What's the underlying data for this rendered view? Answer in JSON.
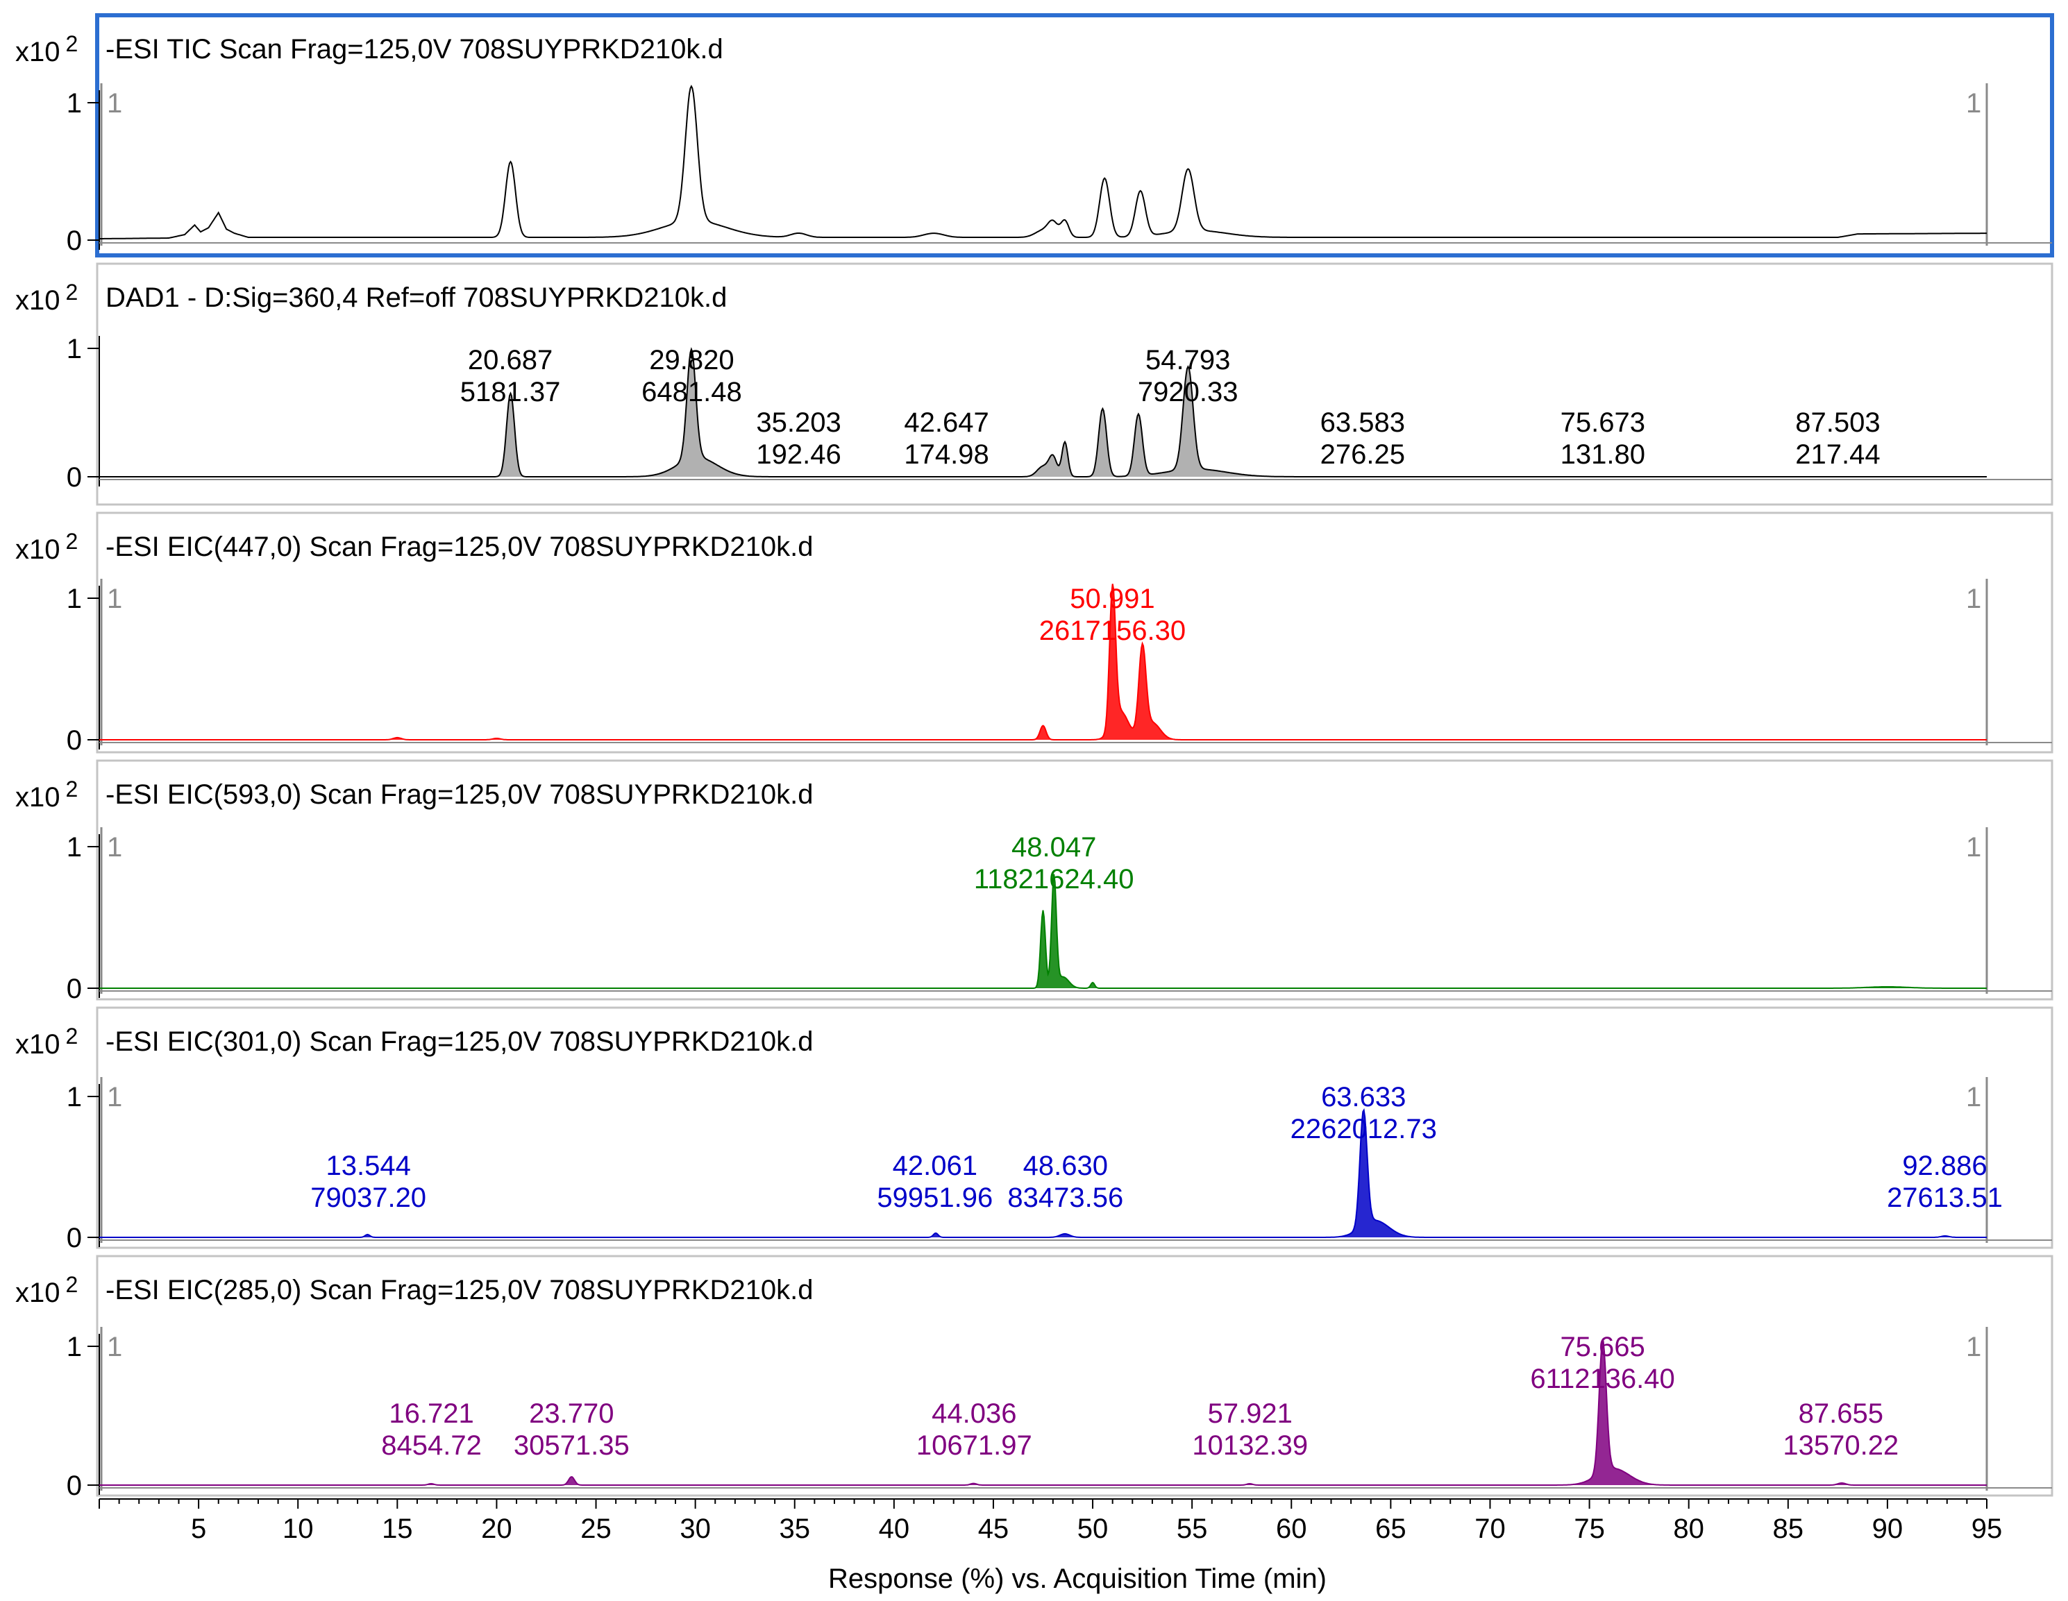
{
  "chart_data": {
    "type": "line",
    "xlabel": "Response (%) vs. Acquisition Time (min)",
    "xlim": [
      0,
      95
    ],
    "x_ticks": [
      5,
      10,
      15,
      20,
      25,
      30,
      35,
      40,
      45,
      50,
      55,
      60,
      65,
      70,
      75,
      80,
      85,
      90,
      95
    ],
    "panels": [
      {
        "title": "-ESI TIC Scan Frag=125,0V 708SUYPRKD210k.d",
        "y_unit_base": "x10",
        "y_unit_exp": "2",
        "y_ticks": [
          "1",
          "0"
        ],
        "ylim": [
          0,
          1
        ],
        "markers": [
          "1",
          "1"
        ],
        "color": "#000000",
        "selected": true,
        "fill": false,
        "baseline": [
          [
            0,
            0.01
          ],
          [
            3.5,
            0.015
          ],
          [
            4.3,
            0.04
          ],
          [
            4.8,
            0.11
          ],
          [
            5.1,
            0.06
          ],
          [
            5.5,
            0.09
          ],
          [
            6.0,
            0.2
          ],
          [
            6.4,
            0.08
          ],
          [
            6.8,
            0.05
          ],
          [
            7.5,
            0.02
          ],
          [
            20,
            0.02
          ],
          [
            87.5,
            0.02
          ],
          [
            88.5,
            0.045
          ],
          [
            95,
            0.05
          ]
        ],
        "peaks": [
          [
            20.7,
            0.55,
            0.25
          ],
          [
            29.8,
            0.98,
            0.3
          ],
          [
            29.95,
            0.12,
            1.6
          ],
          [
            35.2,
            0.03,
            0.4
          ],
          [
            42.0,
            0.03,
            0.5
          ],
          [
            47.5,
            0.05,
            0.4
          ],
          [
            48.0,
            0.1,
            0.25
          ],
          [
            48.6,
            0.12,
            0.2
          ],
          [
            50.6,
            0.43,
            0.25
          ],
          [
            52.4,
            0.33,
            0.25
          ],
          [
            54.8,
            0.45,
            0.3
          ],
          [
            55.2,
            0.05,
            1.5
          ]
        ],
        "labels": []
      },
      {
        "title": "DAD1 - D:Sig=360,4  Ref=off 708SUYPRKD210k.d",
        "y_unit_base": "x10",
        "y_unit_exp": "2",
        "y_ticks": [
          "1",
          "0"
        ],
        "ylim": [
          0,
          1
        ],
        "markers": [],
        "color": "#000000",
        "selected": false,
        "fill": true,
        "baseline": [
          [
            0,
            0.0
          ],
          [
            95,
            0.0
          ]
        ],
        "peaks": [
          [
            20.7,
            0.65,
            0.2
          ],
          [
            29.8,
            0.85,
            0.22
          ],
          [
            30.1,
            0.15,
            1.0
          ],
          [
            47.5,
            0.08,
            0.3
          ],
          [
            48.0,
            0.15,
            0.2
          ],
          [
            48.6,
            0.27,
            0.15
          ],
          [
            50.5,
            0.53,
            0.2
          ],
          [
            52.3,
            0.48,
            0.2
          ],
          [
            54.8,
            0.8,
            0.25
          ],
          [
            55.2,
            0.06,
            1.5
          ]
        ],
        "labels": [
          {
            "x": 20.687,
            "rt": "20.687",
            "area": "5181.37"
          },
          {
            "x": 29.82,
            "rt": "29.820",
            "area": "6481.48"
          },
          {
            "x": 35.203,
            "rt": "35.203",
            "area": "192.46"
          },
          {
            "x": 42.647,
            "rt": "42.647",
            "area": "174.98"
          },
          {
            "x": 54.793,
            "rt": "54.793",
            "area": "7920.33"
          },
          {
            "x": 63.583,
            "rt": "63.583",
            "area": "276.25"
          },
          {
            "x": 75.673,
            "rt": "75.673",
            "area": "131.80"
          },
          {
            "x": 87.503,
            "rt": "87.503",
            "area": "217.44"
          }
        ]
      },
      {
        "title": "-ESI EIC(447,0) Scan Frag=125,0V 708SUYPRKD210k.d",
        "y_unit_base": "x10",
        "y_unit_exp": "2",
        "y_ticks": [
          "1",
          "0"
        ],
        "ylim": [
          0,
          1
        ],
        "markers": [
          "1",
          "1"
        ],
        "color": "#ff0000",
        "selected": false,
        "fill": true,
        "baseline": [
          [
            0,
            0.0
          ],
          [
            95,
            0.0
          ]
        ],
        "peaks": [
          [
            47.5,
            0.1,
            0.15
          ],
          [
            51.0,
            0.98,
            0.15
          ],
          [
            51.4,
            0.2,
            0.4
          ],
          [
            52.5,
            0.62,
            0.18
          ],
          [
            53.0,
            0.12,
            0.4
          ],
          [
            15.0,
            0.015,
            0.2
          ],
          [
            20.0,
            0.01,
            0.2
          ]
        ],
        "labels": [
          {
            "x": 50.991,
            "rt": "50.991",
            "area": "2617156.30"
          }
        ]
      },
      {
        "title": "-ESI EIC(593,0) Scan Frag=125,0V 708SUYPRKD210k.d",
        "y_unit_base": "x10",
        "y_unit_exp": "2",
        "y_ticks": [
          "1",
          "0"
        ],
        "ylim": [
          0,
          1
        ],
        "markers": [
          "1",
          "1"
        ],
        "color": "#008000",
        "selected": false,
        "fill": true,
        "baseline": [
          [
            0,
            0.0
          ],
          [
            95,
            0.0
          ]
        ],
        "peaks": [
          [
            47.5,
            0.55,
            0.12
          ],
          [
            48.05,
            0.78,
            0.12
          ],
          [
            48.5,
            0.08,
            0.3
          ],
          [
            50.0,
            0.04,
            0.1
          ],
          [
            90.0,
            0.01,
            1.0
          ]
        ],
        "labels": [
          {
            "x": 48.047,
            "rt": "48.047",
            "area": "11821624.40"
          }
        ]
      },
      {
        "title": "-ESI EIC(301,0) Scan Frag=125,0V 708SUYPRKD210k.d",
        "y_unit_base": "x10",
        "y_unit_exp": "2",
        "y_ticks": [
          "1",
          "0"
        ],
        "ylim": [
          0,
          1
        ],
        "markers": [
          "1",
          "1"
        ],
        "color": "#0000c8",
        "selected": false,
        "fill": true,
        "baseline": [
          [
            0,
            0.0
          ],
          [
            95,
            0.0
          ]
        ],
        "peaks": [
          [
            63.63,
            0.82,
            0.18
          ],
          [
            64.2,
            0.12,
            0.7
          ],
          [
            13.5,
            0.02,
            0.12
          ],
          [
            42.1,
            0.03,
            0.12
          ],
          [
            48.6,
            0.025,
            0.25
          ],
          [
            92.9,
            0.01,
            0.2
          ]
        ],
        "labels": [
          {
            "x": 13.544,
            "rt": "13.544",
            "area": "79037.20"
          },
          {
            "x": 42.061,
            "rt": "42.061",
            "area": "59951.96"
          },
          {
            "x": 48.63,
            "rt": "48.630",
            "area": "83473.56"
          },
          {
            "x": 63.633,
            "rt": "63.633",
            "area": "2262012.73"
          },
          {
            "x": 92.886,
            "rt": "92.886",
            "area": "27613.51"
          }
        ]
      },
      {
        "title": "-ESI EIC(285,0) Scan Frag=125,0V 708SUYPRKD210k.d",
        "y_unit_base": "x10",
        "y_unit_exp": "2",
        "y_ticks": [
          "1",
          "0"
        ],
        "ylim": [
          0,
          1
        ],
        "markers": [
          "1",
          "1"
        ],
        "color": "#800080",
        "selected": false,
        "fill": true,
        "baseline": [
          [
            0,
            0.0
          ],
          [
            95,
            0.0
          ]
        ],
        "peaks": [
          [
            75.67,
            0.95,
            0.18
          ],
          [
            76.2,
            0.12,
            0.8
          ],
          [
            23.77,
            0.06,
            0.15
          ],
          [
            16.7,
            0.01,
            0.15
          ],
          [
            44.0,
            0.012,
            0.15
          ],
          [
            57.9,
            0.01,
            0.15
          ],
          [
            87.7,
            0.015,
            0.2
          ]
        ],
        "labels": [
          {
            "x": 16.721,
            "rt": "16.721",
            "area": "8454.72"
          },
          {
            "x": 23.77,
            "rt": "23.770",
            "area": "30571.35"
          },
          {
            "x": 44.036,
            "rt": "44.036",
            "area": "10671.97"
          },
          {
            "x": 57.921,
            "rt": "57.921",
            "area": "10132.39"
          },
          {
            "x": 75.665,
            "rt": "75.665",
            "area": "6112136.40"
          },
          {
            "x": 87.655,
            "rt": "87.655",
            "area": "13570.22"
          }
        ]
      }
    ]
  }
}
